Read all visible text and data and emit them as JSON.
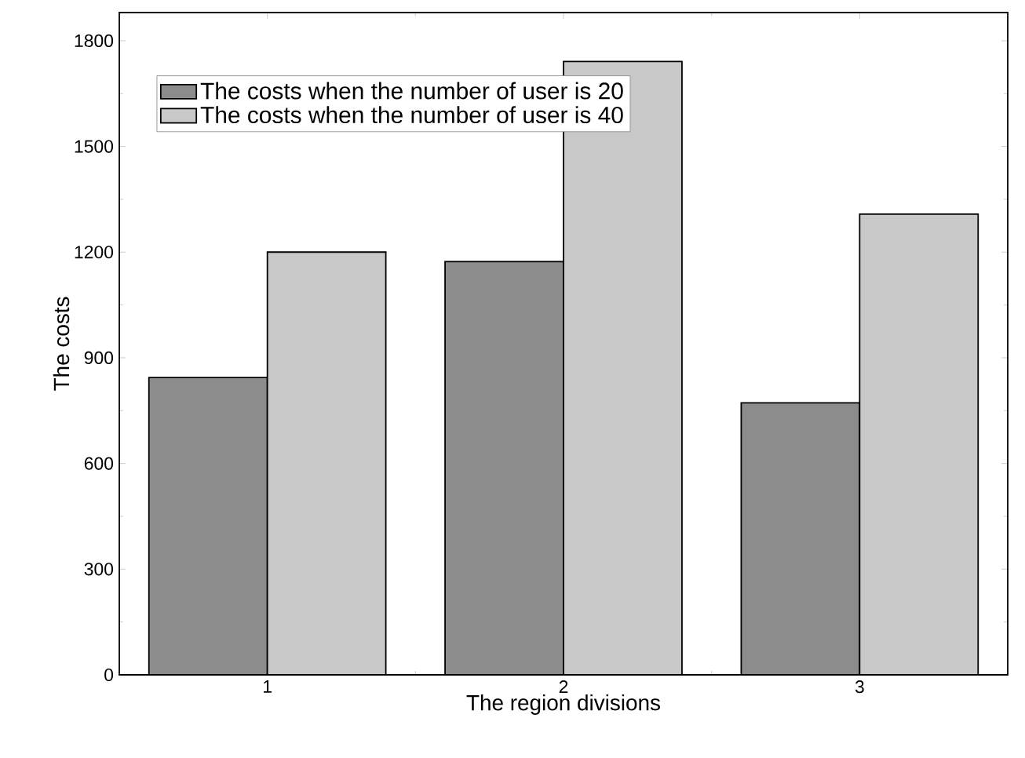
{
  "chart_data": {
    "type": "bar",
    "xlabel": "The region divisions",
    "ylabel": "The costs",
    "categories": [
      "1",
      "2",
      "3"
    ],
    "series": [
      {
        "name": "The costs when the number of user is 20",
        "color": "#8c8c8c",
        "values": [
          844,
          1173,
          772
        ]
      },
      {
        "name": "The costs when the number of user is 40",
        "color": "#c8c8c8",
        "values": [
          1200,
          1741,
          1308
        ]
      }
    ],
    "ylim": [
      0,
      1880
    ],
    "yticks": [
      0,
      300,
      600,
      900,
      1200,
      1500,
      1800
    ],
    "legend": "top left"
  }
}
